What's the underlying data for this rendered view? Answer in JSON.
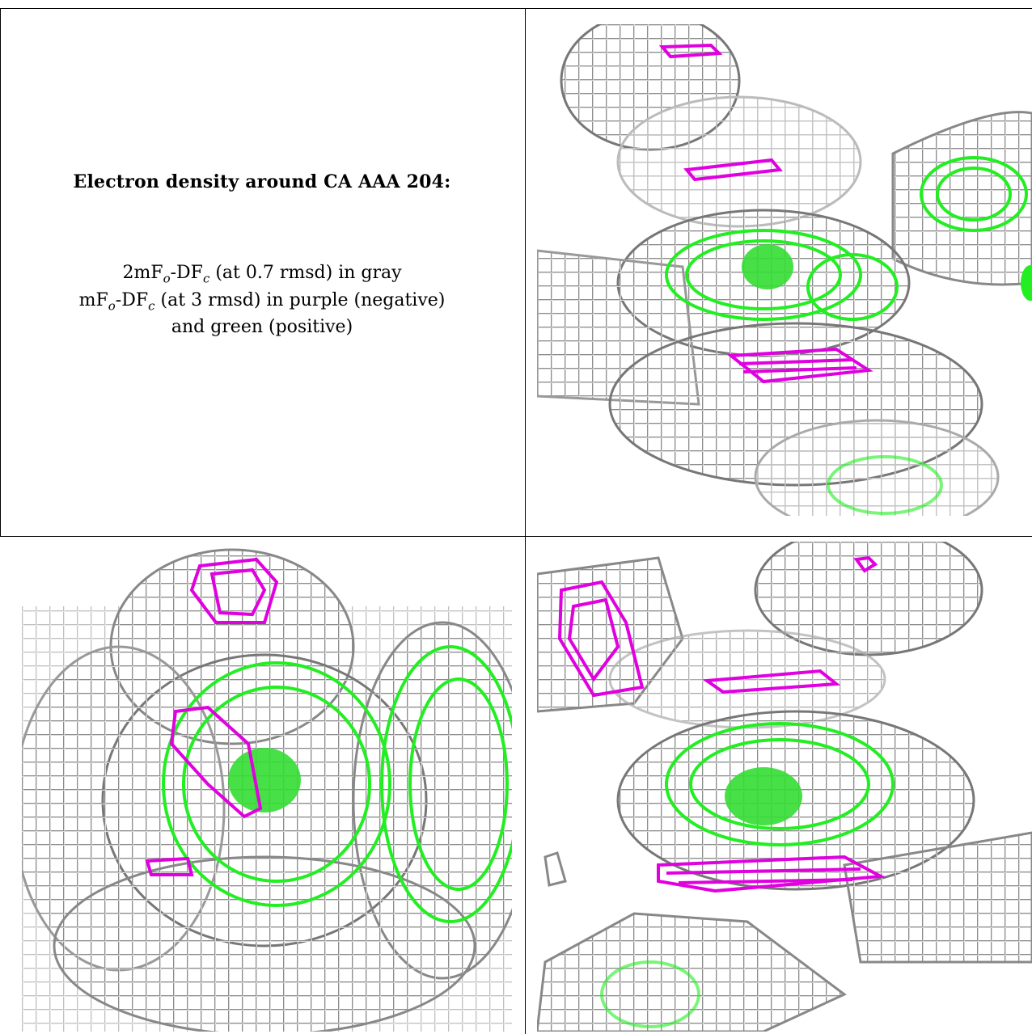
{
  "caption": {
    "title": "Electron density around CA AAA 204:",
    "line1": {
      "pre": "2mF",
      "sub1": "o",
      "mid": "-DF",
      "sub2": "c",
      "post": " (at 0.7 rmsd) in gray"
    },
    "line2": {
      "pre": "mF",
      "sub1": "o",
      "mid": "-DF",
      "sub2": "c",
      "post": " (at 3 rmsd) in purple (negative)"
    },
    "line3": "and green (positive)"
  },
  "colors": {
    "gray_mesh": "#9a9a9a",
    "negative": "#e000e0",
    "positive": "#22ee22",
    "border": "#000000"
  },
  "panels": [
    {
      "name": "view-top-right"
    },
    {
      "name": "view-bottom-left"
    },
    {
      "name": "view-bottom-right"
    }
  ]
}
